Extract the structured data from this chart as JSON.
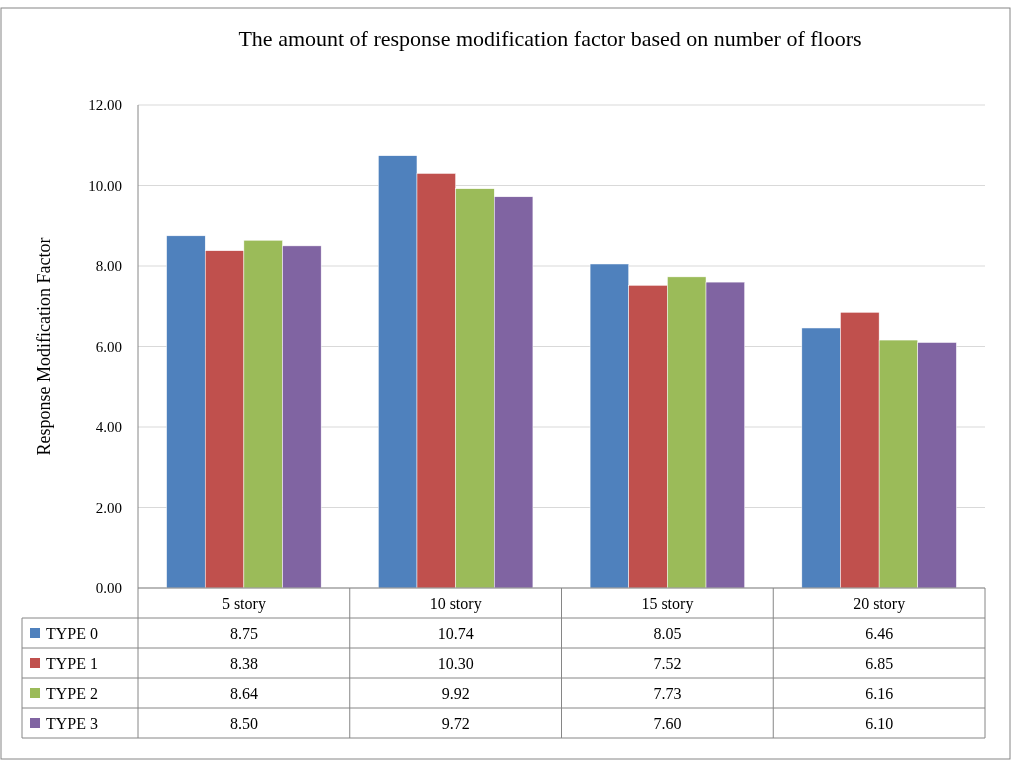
{
  "chart_data": {
    "type": "bar",
    "title": "The amount of response modification factor based on number of floors",
    "ylabel": "Response Modification  Factor",
    "categories": [
      "5 story",
      "10 story",
      "15 story",
      "20 story"
    ],
    "series": [
      {
        "name": "TYPE 0",
        "color": "#4f81bd",
        "values": [
          8.75,
          10.74,
          8.05,
          6.46
        ],
        "value_labels": [
          "8.75",
          "10.74",
          "8.05",
          "6.46"
        ]
      },
      {
        "name": "TYPE 1",
        "color": "#c0504d",
        "values": [
          8.38,
          10.3,
          7.52,
          6.85
        ],
        "value_labels": [
          "8.38",
          "10.30",
          "7.52",
          "6.85"
        ]
      },
      {
        "name": "TYPE 2",
        "color": "#9bbb59",
        "values": [
          8.64,
          9.92,
          7.73,
          6.16
        ],
        "value_labels": [
          "8.64",
          "9.92",
          "7.73",
          "6.16"
        ]
      },
      {
        "name": "TYPE 3",
        "color": "#8064a2",
        "values": [
          8.5,
          9.72,
          7.6,
          6.1
        ],
        "value_labels": [
          "8.50",
          "9.72",
          "7.60",
          "6.10"
        ]
      }
    ],
    "ylim": [
      0,
      12
    ],
    "yticks": [
      {
        "value": 0,
        "label": "0.00"
      },
      {
        "value": 2,
        "label": "2.00"
      },
      {
        "value": 4,
        "label": "4.00"
      },
      {
        "value": 6,
        "label": "6.00"
      },
      {
        "value": 8,
        "label": "8.00"
      },
      {
        "value": 10,
        "label": "10.00"
      },
      {
        "value": 12,
        "label": "12.00"
      }
    ],
    "grid": "y",
    "legend": "bottom"
  }
}
